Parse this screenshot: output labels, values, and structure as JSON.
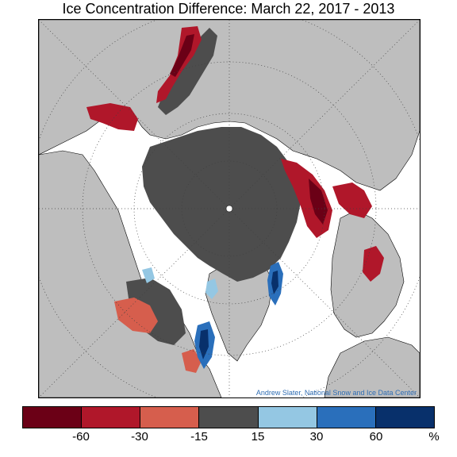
{
  "title": "Ice Concentration Difference: March 22, 2017 - 2013",
  "credit": "Andrew Slater, National Snow and Ice Data Center",
  "map": {
    "projection": "polar-stereographic-north",
    "colors": {
      "land": "#bebebe",
      "ocean_background": "#ffffff",
      "no_change_ice": "#4d4d4d",
      "coastline": "#000000",
      "graticule": "#404040",
      "pole_marker": "#ffffff"
    }
  },
  "legend": {
    "colors": [
      "#6b0016",
      "#b0172a",
      "#d65e4d",
      "#4d4d4d",
      "#94c7e3",
      "#2a6fbb",
      "#08306b"
    ],
    "tick_labels": [
      "-60",
      "-30",
      "-15",
      "15",
      "30",
      "60"
    ],
    "unit": "%"
  }
}
